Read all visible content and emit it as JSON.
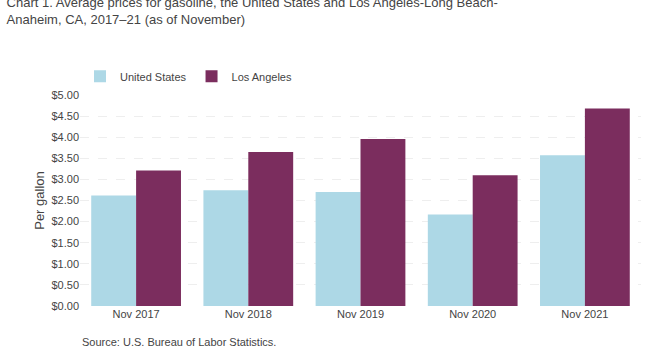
{
  "chart_data": {
    "type": "bar",
    "title": "Chart 1. Average prices for gasoline, the United States and Los Angeles-Long Beach-\nAnaheim, CA, 2017–21 (as of November)",
    "ylabel": "Per gallon",
    "categories": [
      "Nov 2017",
      "Nov 2018",
      "Nov 2019",
      "Nov 2020",
      "Nov 2021"
    ],
    "series": [
      {
        "name": "United States",
        "color": "#ADD8E6",
        "values": [
          2.62,
          2.74,
          2.7,
          2.17,
          3.57
        ]
      },
      {
        "name": "Los Angeles",
        "color": "#7B2D5E",
        "values": [
          3.21,
          3.65,
          3.96,
          3.1,
          4.68
        ]
      }
    ],
    "ylim": [
      0,
      5.0
    ],
    "yticks": [
      {
        "value": 0.0,
        "label": "$0.00"
      },
      {
        "value": 0.5,
        "label": "$0.50"
      },
      {
        "value": 1.0,
        "label": "$1.00"
      },
      {
        "value": 1.5,
        "label": "$1.50"
      },
      {
        "value": 2.0,
        "label": "$2.00"
      },
      {
        "value": 2.5,
        "label": "$2.50"
      },
      {
        "value": 3.0,
        "label": "$3.00"
      },
      {
        "value": 3.5,
        "label": "$3.50"
      },
      {
        "value": 4.0,
        "label": "$4.00"
      },
      {
        "value": 4.5,
        "label": "$4.50"
      },
      {
        "value": 5.0,
        "label": "$5.00"
      }
    ],
    "grid": true,
    "legend": "top",
    "annotations": [
      "Source: U.S. Bureau of Labor Statistics."
    ]
  }
}
